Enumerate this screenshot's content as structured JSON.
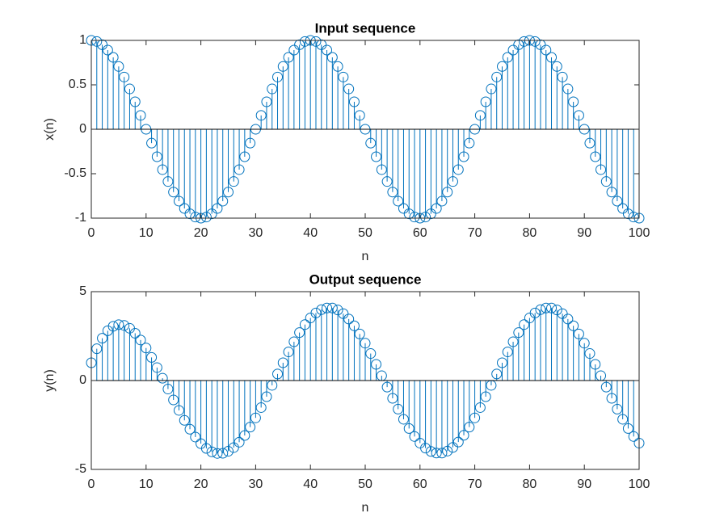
{
  "chart_data": [
    {
      "type": "stem",
      "title": "Input sequence",
      "xlabel": "n",
      "ylabel": "x(n)",
      "x": [
        0,
        1,
        2,
        3,
        4,
        5,
        6,
        7,
        8,
        9,
        10,
        11,
        12,
        13,
        14,
        15,
        16,
        17,
        18,
        19,
        20,
        21,
        22,
        23,
        24,
        25,
        26,
        27,
        28,
        29,
        30,
        31,
        32,
        33,
        34,
        35,
        36,
        37,
        38,
        39,
        40,
        41,
        42,
        43,
        44,
        45,
        46,
        47,
        48,
        49,
        50,
        51,
        52,
        53,
        54,
        55,
        56,
        57,
        58,
        59,
        60,
        61,
        62,
        63,
        64,
        65,
        66,
        67,
        68,
        69,
        70,
        71,
        72,
        73,
        74,
        75,
        76,
        77,
        78,
        79,
        80,
        81,
        82,
        83,
        84,
        85,
        86,
        87,
        88,
        89,
        90,
        91,
        92,
        93,
        94,
        95,
        96,
        97,
        98,
        99,
        100
      ],
      "series": [
        {
          "color": "#0072bd",
          "values": [
            1,
            0.988,
            0.951,
            0.891,
            0.809,
            0.707,
            0.588,
            0.454,
            0.309,
            0.156,
            0,
            -0.156,
            -0.309,
            -0.454,
            -0.588,
            -0.707,
            -0.809,
            -0.891,
            -0.951,
            -0.988,
            -1,
            -0.988,
            -0.951,
            -0.891,
            -0.809,
            -0.707,
            -0.588,
            -0.454,
            -0.309,
            -0.156,
            0,
            0.156,
            0.309,
            0.454,
            0.588,
            0.707,
            0.809,
            0.891,
            0.951,
            0.988,
            1,
            0.988,
            0.951,
            0.891,
            0.809,
            0.707,
            0.588,
            0.454,
            0.309,
            0.156,
            0,
            -0.156,
            -0.309,
            -0.454,
            -0.588,
            -0.707,
            -0.809,
            -0.891,
            -0.951,
            -0.988,
            -1,
            -0.988,
            -0.951,
            -0.891,
            -0.809,
            -0.707,
            -0.588,
            -0.454,
            -0.309,
            -0.156,
            0,
            0.156,
            0.309,
            0.454,
            0.588,
            0.707,
            0.809,
            0.891,
            0.951,
            0.988,
            1,
            0.988,
            0.951,
            0.891,
            0.809,
            0.707,
            0.588,
            0.454,
            0.309,
            0.156,
            0,
            -0.156,
            -0.309,
            -0.454,
            -0.588,
            -0.707,
            -0.809,
            -0.891,
            -0.951,
            -0.988,
            -1
          ]
        }
      ],
      "xlim": [
        0,
        100
      ],
      "xticks": [
        0,
        10,
        20,
        30,
        40,
        50,
        60,
        70,
        80,
        90,
        100
      ],
      "ylim": [
        -1,
        1
      ],
      "yticks": [
        -1,
        -0.5,
        0,
        0.5,
        1
      ]
    },
    {
      "type": "stem",
      "title": "Output sequence",
      "xlabel": "n",
      "ylabel": "y(n)",
      "x": [
        0,
        1,
        2,
        3,
        4,
        5,
        6,
        7,
        8,
        9,
        10,
        11,
        12,
        13,
        14,
        15,
        16,
        17,
        18,
        19,
        20,
        21,
        22,
        23,
        24,
        25,
        26,
        27,
        28,
        29,
        30,
        31,
        32,
        33,
        34,
        35,
        36,
        37,
        38,
        39,
        40,
        41,
        42,
        43,
        44,
        45,
        46,
        47,
        48,
        49,
        50,
        51,
        52,
        53,
        54,
        55,
        56,
        57,
        58,
        59,
        60,
        61,
        62,
        63,
        64,
        65,
        66,
        67,
        68,
        69,
        70,
        71,
        72,
        73,
        74,
        75,
        76,
        77,
        78,
        79,
        80,
        81,
        82,
        83,
        84,
        85,
        86,
        87,
        88,
        89,
        90,
        91,
        92,
        93,
        94,
        95,
        96,
        97,
        98,
        99,
        100
      ],
      "series": [
        {
          "color": "#0072bd",
          "values": [
            1.0,
            1.79,
            2.38,
            2.8,
            3.05,
            3.14,
            3.1,
            2.94,
            2.66,
            2.28,
            1.83,
            1.3,
            0.73,
            0.13,
            -0.48,
            -1.09,
            -1.68,
            -2.24,
            -2.74,
            -3.18,
            -3.55,
            -3.82,
            -4.01,
            -4.1,
            -4.09,
            -3.98,
            -3.77,
            -3.47,
            -3.09,
            -2.62,
            -2.1,
            -1.52,
            -0.91,
            -0.27,
            0.37,
            1.0,
            1.61,
            2.18,
            2.7,
            3.15,
            3.52,
            3.8,
            3.99,
            4.08,
            4.08,
            3.97,
            3.76,
            3.46,
            3.08,
            2.62,
            2.1,
            1.52,
            0.91,
            0.27,
            -0.37,
            -1.0,
            -1.61,
            -2.18,
            -2.7,
            -3.15,
            -3.52,
            -3.8,
            -3.99,
            -4.08,
            -4.08,
            -3.97,
            -3.76,
            -3.46,
            -3.08,
            -2.62,
            -2.1,
            -1.52,
            -0.91,
            -0.27,
            0.37,
            1.0,
            1.61,
            2.18,
            2.7,
            3.15,
            3.52,
            3.8,
            3.99,
            4.08,
            4.08,
            3.97,
            3.76,
            3.46,
            3.08,
            2.62,
            2.1,
            1.52,
            0.91,
            0.27,
            -0.37,
            -1.0,
            -1.61,
            -2.18,
            -2.7,
            -3.15,
            -3.52
          ]
        }
      ],
      "xlim": [
        0,
        100
      ],
      "xticks": [
        0,
        10,
        20,
        30,
        40,
        50,
        60,
        70,
        80,
        90,
        100
      ],
      "ylim": [
        -5,
        5
      ],
      "yticks": [
        -5,
        0,
        5
      ]
    }
  ]
}
